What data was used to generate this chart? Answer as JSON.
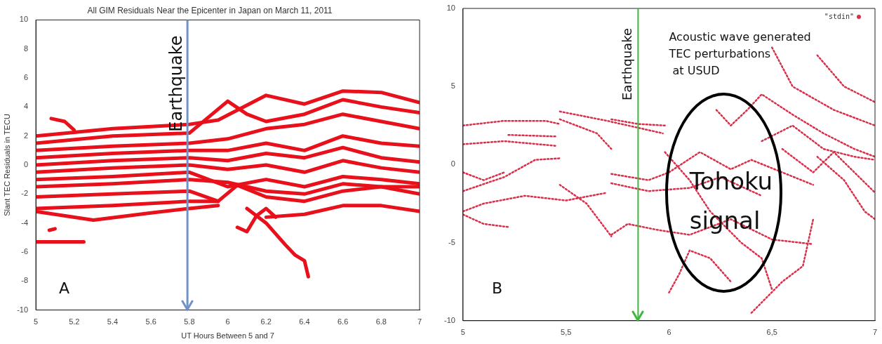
{
  "chart_data": [
    {
      "type": "line",
      "title": "All GIM Residuals Near the Epicenter in Japan on March 11, 2011",
      "xlabel": "UT Hours Between 5 and 7",
      "ylabel": "Slant TEC Residuals in TECU",
      "xlim": [
        5,
        7
      ],
      "ylim": [
        -10,
        10
      ],
      "xticks": [
        5,
        5.2,
        5.4,
        5.6,
        5.8,
        6,
        6.2,
        6.4,
        6.6,
        6.8,
        7
      ],
      "yticks": [
        -10,
        -8,
        -6,
        -4,
        -2,
        0,
        2,
        4,
        6,
        8,
        10
      ],
      "line_style": "solid",
      "marker": "none",
      "ref_lines": [
        {
          "axis": "x",
          "value": 5.79,
          "label": "Earthquake",
          "color": "#7391c6"
        }
      ],
      "annotations": [
        "A"
      ],
      "series": [
        {
          "color": "#e8101a",
          "x": [
            5,
            5.4,
            5.8,
            5.95,
            6.2,
            6.4,
            6.6,
            6.8,
            7
          ],
          "values": [
            2.0,
            2.5,
            2.8,
            3.1,
            4.8,
            4.2,
            5.1,
            5.0,
            4.3
          ]
        },
        {
          "color": "#e8101a",
          "x": [
            5,
            5.4,
            5.8,
            6,
            6.1,
            6.2,
            6.4,
            6.6,
            6.8,
            7
          ],
          "values": [
            1.5,
            2.0,
            2.2,
            4.4,
            3.5,
            3.0,
            3.5,
            4.5,
            4.0,
            3.6
          ]
        },
        {
          "color": "#e8101a",
          "x": [
            5,
            5.4,
            5.8,
            6,
            6.2,
            6.4,
            6.6,
            6.8,
            7
          ],
          "values": [
            1.0,
            1.3,
            1.5,
            1.8,
            2.5,
            2.8,
            3.5,
            3.0,
            2.5
          ]
        },
        {
          "color": "#e8101a",
          "x": [
            5,
            5.4,
            5.8,
            6,
            6.2,
            6.4,
            6.6,
            6.8,
            7
          ],
          "values": [
            0.5,
            0.8,
            1.0,
            1.0,
            1.5,
            1.0,
            2.0,
            1.5,
            1.3
          ]
        },
        {
          "color": "#e8101a",
          "x": [
            5,
            5.4,
            5.8,
            6,
            6.2,
            6.4,
            6.6,
            6.8,
            7
          ],
          "values": [
            0,
            0.3,
            0.5,
            0.3,
            0.8,
            0.5,
            1.2,
            0.5,
            0.2
          ]
        },
        {
          "color": "#e8101a",
          "x": [
            5,
            5.4,
            5.8,
            6,
            6.2,
            6.4,
            6.6,
            6.8,
            7
          ],
          "values": [
            -0.5,
            -0.2,
            0,
            -0.3,
            0,
            -0.5,
            0.3,
            -0.2,
            -0.5
          ]
        },
        {
          "color": "#e8101a",
          "x": [
            5,
            5.4,
            5.8,
            6,
            6.2,
            6.4,
            6.6,
            6.8,
            7
          ],
          "values": [
            -1,
            -0.8,
            -0.5,
            -1.5,
            -1.0,
            -1.5,
            -0.8,
            -1.0,
            -1.3
          ]
        },
        {
          "color": "#e8101a",
          "x": [
            5,
            5.4,
            5.8,
            6,
            6.2,
            6.4,
            6.6,
            6.8,
            7
          ],
          "values": [
            -1.5,
            -1.3,
            -1.0,
            -1.2,
            -1.8,
            -2.0,
            -1.3,
            -1.5,
            -2.0
          ]
        },
        {
          "color": "#e8101a",
          "x": [
            5,
            5.4,
            5.8,
            5.95,
            6.05,
            6.2,
            6.4,
            6.6,
            6.8,
            7
          ],
          "values": [
            -2.2,
            -2.0,
            -1.8,
            -2.5,
            -1.4,
            -2.2,
            -2.5,
            -1.8,
            -1.5,
            -1.5
          ]
        },
        {
          "color": "#e8101a",
          "x": [
            5,
            5.4,
            5.8,
            5.95
          ],
          "values": [
            -3.0,
            -2.8,
            -2.5,
            -2.5
          ]
        },
        {
          "color": "#e8101a",
          "x": [
            5,
            5.3,
            5.6,
            5.8,
            5.95
          ],
          "values": [
            -3.2,
            -3.8,
            -3.3,
            -3.0,
            -2.8
          ]
        },
        {
          "color": "#e8101a",
          "x": [
            5,
            5.25
          ],
          "values": [
            -5.3,
            -5.3
          ]
        },
        {
          "color": "#e8101a",
          "x": [
            5.07,
            5.1
          ],
          "values": [
            -4.5,
            -4.4
          ]
        },
        {
          "color": "#e8101a",
          "x": [
            5.08,
            5.15,
            5.2
          ],
          "values": [
            3.2,
            3.0,
            2.4
          ]
        },
        {
          "color": "#e8101a",
          "x": [
            6.2,
            6.4,
            6.6,
            6.8,
            7
          ],
          "values": [
            -3.6,
            -3.4,
            -2.8,
            -2.8,
            -3.2
          ]
        },
        {
          "color": "#e8101a",
          "x": [
            6.05,
            6.1,
            6.15,
            6.2,
            6.25
          ],
          "values": [
            -4.3,
            -4.6,
            -3.5,
            -3.0,
            -3.6
          ]
        },
        {
          "color": "#e8101a",
          "x": [
            6.1,
            6.2,
            6.3,
            6.35,
            6.4,
            6.42
          ],
          "values": [
            -3.0,
            -4.0,
            -5.5,
            -6.2,
            -6.6,
            -7.7
          ]
        }
      ]
    },
    {
      "type": "line",
      "xlim": [
        5,
        7
      ],
      "ylim": [
        -10,
        10
      ],
      "xticks": [
        5,
        {
          "value": 5.5,
          "label": "5,5"
        },
        6,
        {
          "value": 6.5,
          "label": "6,5"
        },
        7
      ],
      "yticks": [
        -10,
        -5,
        0,
        5,
        10
      ],
      "line_style": "dotted",
      "marker": "none",
      "legend": "top right",
      "ref_lines": [
        {
          "axis": "x",
          "value": 5.85,
          "label": "Earthquake",
          "color": "#3cb83c"
        }
      ],
      "annotations": [
        "B",
        "Acoustic wave generated\nTEC perturbations\n at USUD",
        "Tohoku\nsignal"
      ],
      "series": [
        {
          "name": "\"stdin\"",
          "color": "#d9304a",
          "x": [
            5,
            5.2,
            5.4,
            5.47
          ],
          "values": [
            2.5,
            2.8,
            2.8,
            2.6
          ]
        },
        {
          "color": "#d9304a",
          "x": [
            5,
            5.2,
            5.45
          ],
          "values": [
            1.3,
            1.5,
            1.2
          ]
        },
        {
          "color": "#d9304a",
          "x": [
            5.22,
            5.45
          ],
          "values": [
            1.9,
            1.8
          ]
        },
        {
          "color": "#d9304a",
          "x": [
            5.47,
            5.7,
            5.97
          ],
          "values": [
            3.4,
            2.8,
            2.0
          ]
        },
        {
          "color": "#d9304a",
          "x": [
            5.47,
            5.65,
            5.72
          ],
          "values": [
            2.9,
            2.0,
            1.0
          ]
        },
        {
          "color": "#d9304a",
          "x": [
            5.72,
            5.85,
            5.98
          ],
          "values": [
            2.9,
            2.6,
            2.5
          ]
        },
        {
          "color": "#d9304a",
          "x": [
            5,
            5.1,
            5.2
          ],
          "values": [
            -0.5,
            -1.0,
            -0.5
          ]
        },
        {
          "color": "#d9304a",
          "x": [
            5,
            5.2,
            5.35,
            5.47
          ],
          "values": [
            -1.7,
            -0.8,
            0.3,
            0.4
          ]
        },
        {
          "color": "#d9304a",
          "x": [
            5,
            5.1,
            5.3,
            5.5,
            5.7
          ],
          "values": [
            -3,
            -2.5,
            -2,
            -2.3,
            -1.8
          ]
        },
        {
          "color": "#d9304a",
          "x": [
            5,
            5.1,
            5.22
          ],
          "values": [
            -3.2,
            -3.8,
            -4.0
          ]
        },
        {
          "color": "#d9304a",
          "x": [
            5.47,
            5.6,
            5.72
          ],
          "values": [
            -1.3,
            -2.5,
            -4.6
          ]
        },
        {
          "color": "#d9304a",
          "x": [
            5.72,
            5.8,
            5.95,
            6.1,
            6.3,
            6.5,
            6.7
          ],
          "values": [
            -4.5,
            -3.8,
            -4.2,
            -4.5,
            -3.5,
            -4.8,
            -5.1
          ]
        },
        {
          "color": "#d9304a",
          "x": [
            5.72,
            5.9,
            6.1,
            6.25,
            6.45
          ],
          "values": [
            -1.2,
            -1.7,
            -1.5,
            -0.8,
            -2.0
          ]
        },
        {
          "color": "#d9304a",
          "x": [
            5.72,
            5.9,
            6.0,
            6.15,
            6.3,
            6.4,
            6.55,
            6.7
          ],
          "values": [
            -0.6,
            -1.0,
            -0.5,
            0.8,
            -0.3,
            0.3,
            -0.5,
            -1.3
          ]
        },
        {
          "color": "#d9304a",
          "x": [
            5.98,
            6.1,
            6.2,
            6.35,
            6.45,
            6.5
          ],
          "values": [
            0.8,
            -1.0,
            -3.0,
            -5.0,
            -6.0,
            -8.0
          ]
        },
        {
          "color": "#d9304a",
          "x": [
            6.0,
            6.05,
            6.1,
            6.2,
            6.3
          ],
          "values": [
            -8.2,
            -7.0,
            -5.5,
            -6.0,
            -7.5
          ]
        },
        {
          "color": "#d9304a",
          "x": [
            6.23,
            6.3,
            6.38,
            6.45,
            6.6,
            6.75,
            6.9,
            7
          ],
          "values": [
            3.5,
            2.5,
            3.5,
            4.5,
            3.2,
            2.0,
            1.0,
            0.5
          ]
        },
        {
          "color": "#d9304a",
          "x": [
            6.45,
            6.6,
            6.75,
            6.9,
            7
          ],
          "values": [
            1.5,
            2.5,
            1.0,
            0.5,
            0.3
          ]
        },
        {
          "color": "#d9304a",
          "x": [
            6.5,
            6.6,
            6.8,
            7
          ],
          "values": [
            7.5,
            5.0,
            3.5,
            2.5
          ]
        },
        {
          "color": "#d9304a",
          "x": [
            6.72,
            6.85,
            7
          ],
          "values": [
            7.0,
            5.0,
            4.0
          ]
        },
        {
          "color": "#d9304a",
          "x": [
            6.72,
            6.85,
            6.95,
            7
          ],
          "values": [
            0.5,
            -1.0,
            -3.0,
            -3.5
          ]
        },
        {
          "color": "#d9304a",
          "x": [
            6.4,
            6.55,
            6.65,
            6.7
          ],
          "values": [
            -9.5,
            -7.5,
            -6.5,
            -3.5
          ]
        },
        {
          "color": "#d9304a",
          "x": [
            6.55,
            6.7,
            6.8,
            6.9,
            7
          ],
          "values": [
            1.0,
            -0.5,
            0.8,
            -0.5,
            -1.8
          ]
        }
      ]
    }
  ]
}
